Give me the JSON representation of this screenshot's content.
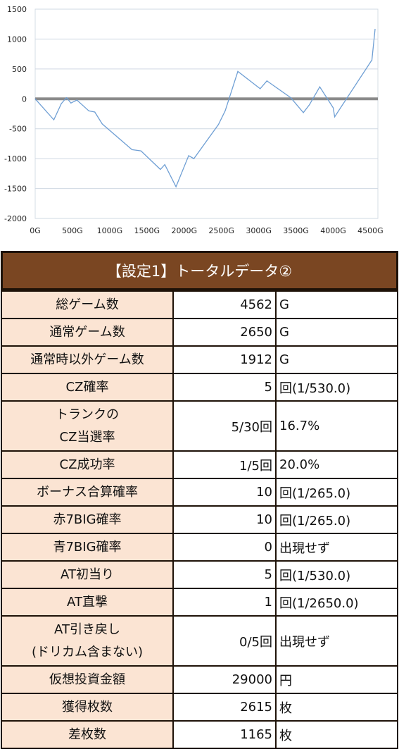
{
  "chart_data": {
    "type": "line",
    "title": "",
    "xlabel": "",
    "ylabel": "",
    "xlim": [
      0,
      4600
    ],
    "ylim": [
      -2000,
      1500
    ],
    "x_ticks": [
      0,
      500,
      1000,
      1500,
      2000,
      2500,
      3000,
      3500,
      4000,
      4500
    ],
    "x_tick_labels": [
      "0G",
      "500G",
      "1000G",
      "1500G",
      "2000G",
      "2500G",
      "3000G",
      "3500G",
      "4000G",
      "4500G"
    ],
    "y_ticks": [
      1500,
      1000,
      500,
      0,
      -500,
      -1000,
      -1500,
      -2000
    ],
    "y_tick_labels": [
      "1500",
      "1000",
      "500",
      "0",
      "-500",
      "-1000",
      "-1500",
      "-2000"
    ],
    "grid": true,
    "zero_line": true,
    "series": [
      {
        "color": "#6f9fd4",
        "x": [
          0,
          250,
          350,
          420,
          480,
          560,
          720,
          800,
          900,
          1300,
          1420,
          1680,
          1740,
          1890,
          2060,
          2130,
          2460,
          2550,
          2720,
          3020,
          3110,
          3430,
          3600,
          3680,
          3820,
          4000,
          4020,
          4520,
          4562
        ],
        "y": [
          0,
          -350,
          -80,
          20,
          -70,
          -20,
          -200,
          -220,
          -420,
          -850,
          -870,
          -1180,
          -1100,
          -1470,
          -950,
          -1000,
          -430,
          -200,
          460,
          170,
          300,
          20,
          -230,
          -100,
          200,
          -150,
          -300,
          650,
          1165
        ]
      }
    ],
    "zero_line_color": "#8a8a8a",
    "grid_color": "#cfd8e3"
  },
  "table": {
    "title": "【設定1】トータルデータ②",
    "rows": [
      {
        "label": "総ゲーム数",
        "value": "4562",
        "unit": "G"
      },
      {
        "label": "通常ゲーム数",
        "value": "2650",
        "unit": "G"
      },
      {
        "label": "通常時以外ゲーム数",
        "value": "1912",
        "unit": "G"
      },
      {
        "label": "CZ確率",
        "value": "5",
        "unit": "回(1/530.0)"
      },
      {
        "label": "トランクの",
        "label2": "CZ当選率",
        "value": "5/30回",
        "unit": "16.7%"
      },
      {
        "label": "CZ成功率",
        "value": "1/5回",
        "unit": "20.0%"
      },
      {
        "label": "ボーナス合算確率",
        "value": "10",
        "unit": "回(1/265.0)"
      },
      {
        "label": "赤7BIG確率",
        "value": "10",
        "unit": "回(1/265.0)"
      },
      {
        "label": "青7BIG確率",
        "value": "0",
        "unit": "出現せず"
      },
      {
        "label": "AT初当り",
        "value": "5",
        "unit": "回(1/530.0)"
      },
      {
        "label": "AT直撃",
        "value": "1",
        "unit": "回(1/2650.0)"
      },
      {
        "label": "AT引き戻し",
        "label2": "(ドリカム含まない)",
        "value": "0/5回",
        "unit": "出現せず"
      },
      {
        "label": "仮想投資金額",
        "value": "29000",
        "unit": "円"
      },
      {
        "label": "獲得枚数",
        "value": "2615",
        "unit": "枚"
      },
      {
        "label": "差枚数",
        "value": "1165",
        "unit": "枚"
      }
    ]
  }
}
